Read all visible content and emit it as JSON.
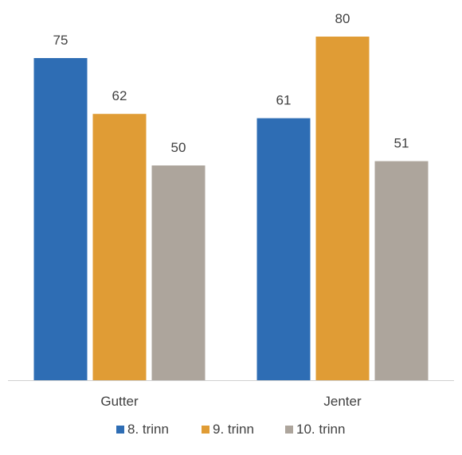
{
  "chart_data": {
    "type": "bar",
    "title": "",
    "xlabel": "",
    "ylabel": "",
    "ylim": [
      0,
      88
    ],
    "grid": false,
    "legend_position": "bottom",
    "categories": [
      "Gutter",
      "Jenter"
    ],
    "series": [
      {
        "name": "8. trinn",
        "color": "#2E6DB4",
        "values": [
          75,
          61
        ]
      },
      {
        "name": "9. trinn",
        "color": "#E09C35",
        "values": [
          62,
          80
        ]
      },
      {
        "name": "10. trinn",
        "color": "#ADA59C",
        "values": [
          50,
          51
        ]
      }
    ]
  },
  "colors": {
    "axis": "#D0D0D0",
    "text": "#404040"
  }
}
